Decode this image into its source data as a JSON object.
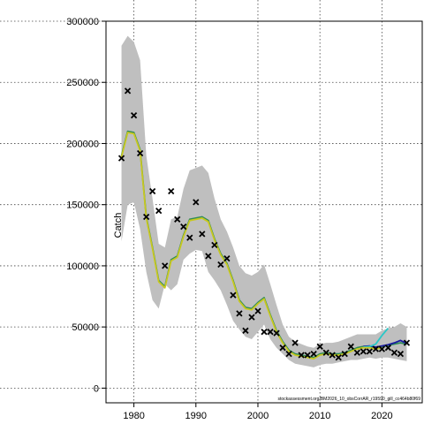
{
  "chart_data": {
    "type": "line",
    "title": "",
    "xlabel": "",
    "ylabel": "Catch",
    "xlim": [
      1975.5,
      2026.5
    ],
    "ylim": [
      -12000,
      300000
    ],
    "xticks": [
      1980,
      1990,
      2000,
      2010,
      2020
    ],
    "yticks": [
      0,
      50000,
      100000,
      150000,
      200000,
      250000,
      300000
    ],
    "xtick_labels": [
      "1980",
      "1990",
      "2000",
      "2010",
      "2020"
    ],
    "ytick_labels": [
      "0",
      "50000",
      "100000",
      "150000",
      "200000",
      "250000",
      "300000"
    ],
    "grid": true,
    "credit": "stockassessment.org/BM2026_10_obsCorrAR_r19590_gill_cc464b80f69",
    "confidence_band": {
      "x": [
        1978,
        1979,
        1980,
        1981,
        1982,
        1983,
        1984,
        1985,
        1986,
        1987,
        1988,
        1989,
        1990,
        1991,
        1992,
        1993,
        1994,
        1995,
        1996,
        1997,
        1998,
        1999,
        2000,
        2001,
        2002,
        2003,
        2004,
        2005,
        2006,
        2007,
        2008,
        2009,
        2010,
        2011,
        2012,
        2013,
        2014,
        2015,
        2016,
        2017,
        2018,
        2019,
        2020,
        2021,
        2022,
        2023,
        2024
      ],
      "lower": [
        120000,
        150000,
        152000,
        130000,
        95000,
        72000,
        65000,
        85000,
        80000,
        85000,
        105000,
        110000,
        113000,
        112000,
        95000,
        88000,
        80000,
        68000,
        55000,
        48000,
        42000,
        40000,
        46000,
        52000,
        40000,
        33000,
        28000,
        23000,
        20000,
        19000,
        18000,
        17000,
        19000,
        20000,
        20000,
        21000,
        22000,
        23000,
        23000,
        24000,
        25000,
        24000,
        25000,
        25000,
        24000,
        23000,
        22000
      ],
      "upper": [
        280000,
        288000,
        283000,
        268000,
        190000,
        155000,
        118000,
        115000,
        138000,
        140000,
        163000,
        178000,
        180000,
        182000,
        176000,
        155000,
        138000,
        128000,
        115000,
        100000,
        94000,
        92000,
        95000,
        101000,
        85000,
        68000,
        52000,
        42000,
        38000,
        36000,
        34000,
        33000,
        36000,
        37000,
        37000,
        38000,
        40000,
        42000,
        44000,
        44000,
        44000,
        44000,
        47000,
        49000,
        50000,
        53000,
        50000
      ]
    },
    "series": [
      {
        "color": "#2e8b57",
        "x": [
          1978,
          1979,
          1980,
          1981,
          1982,
          1983,
          1984,
          1985,
          1986,
          1987,
          1988,
          1989,
          1990,
          1991,
          1992,
          1993,
          1994,
          1995,
          1996,
          1997,
          1998,
          1999,
          2000,
          2001,
          2002,
          2003,
          2004,
          2005,
          2006,
          2007,
          2008,
          2009,
          2010,
          2011,
          2012,
          2013,
          2014,
          2015,
          2016,
          2017,
          2018,
          2019,
          2020,
          2021,
          2022,
          2023,
          2024
        ],
        "values": [
          190000,
          210000,
          209000,
          195000,
          140000,
          115000,
          88000,
          83000,
          105000,
          108000,
          125000,
          138000,
          139000,
          140000,
          137000,
          122000,
          110000,
          102000,
          88000,
          72000,
          66000,
          65000,
          70000,
          74000,
          60000,
          47000,
          38000,
          31000,
          28000,
          27000,
          26000,
          25000,
          28000,
          29000,
          28000,
          28000,
          29000,
          31000,
          33000,
          34000,
          34000,
          33000,
          34000,
          35000,
          36000,
          37000,
          36000
        ]
      },
      {
        "color": "#1a1aa0",
        "x": [
          2017,
          2018,
          2019,
          2020,
          2021,
          2022,
          2023,
          2024
        ],
        "values": [
          34000,
          34500,
          33500,
          34500,
          35500,
          37000,
          39000,
          36500
        ]
      },
      {
        "color": "#28c8c8",
        "x": [
          2017,
          2018,
          2019,
          2020,
          2021
        ],
        "values": [
          33500,
          34000,
          36000,
          43000,
          49000
        ]
      },
      {
        "color": "#c8c820",
        "x": [
          1978,
          1979,
          1980,
          1981,
          1982,
          1983,
          1984,
          1985,
          1986,
          1987,
          1988,
          1989,
          1990,
          1991,
          1992,
          1993,
          1994,
          1995,
          1996,
          1997,
          1998,
          1999,
          2000,
          2001,
          2002,
          2003,
          2004,
          2005,
          2006,
          2007,
          2008,
          2009,
          2010,
          2011,
          2012,
          2013,
          2014,
          2015,
          2016,
          2017,
          2018,
          2019,
          2020
        ],
        "values": [
          189000,
          209000,
          208000,
          194000,
          139000,
          114000,
          87000,
          82000,
          104000,
          107000,
          124000,
          137000,
          138000,
          139000,
          136000,
          121000,
          109000,
          101000,
          87000,
          71000,
          65000,
          64000,
          69000,
          73000,
          59000,
          46000,
          37000,
          30000,
          27000,
          26000,
          25000,
          24000,
          27000,
          28000,
          27000,
          27000,
          28000,
          30000,
          32000,
          33000,
          33000,
          32000,
          33000
        ]
      }
    ],
    "observations": {
      "x": [
        1978,
        1979,
        1980,
        1981,
        1982,
        1983,
        1984,
        1985,
        1986,
        1987,
        1988,
        1989,
        1990,
        1991,
        1992,
        1993,
        1994,
        1995,
        1996,
        1997,
        1998,
        1999,
        2000,
        2001,
        2002,
        2003,
        2004,
        2005,
        2006,
        2007,
        2008,
        2009,
        2010,
        2011,
        2012,
        2013,
        2014,
        2015,
        2016,
        2017,
        2018,
        2019,
        2020,
        2021,
        2022,
        2023,
        2024
      ],
      "values": [
        188000,
        243000,
        223000,
        192000,
        140000,
        161000,
        145000,
        100000,
        161000,
        138000,
        132000,
        123000,
        152000,
        126000,
        108000,
        117000,
        101000,
        106000,
        76000,
        61000,
        47000,
        58000,
        63000,
        46000,
        46000,
        45000,
        33000,
        28000,
        37000,
        27000,
        27000,
        28000,
        34000,
        29000,
        27000,
        25000,
        28000,
        34000,
        29000,
        30000,
        30000,
        32000,
        32000,
        33000,
        29000,
        28000,
        37000
      ]
    }
  }
}
